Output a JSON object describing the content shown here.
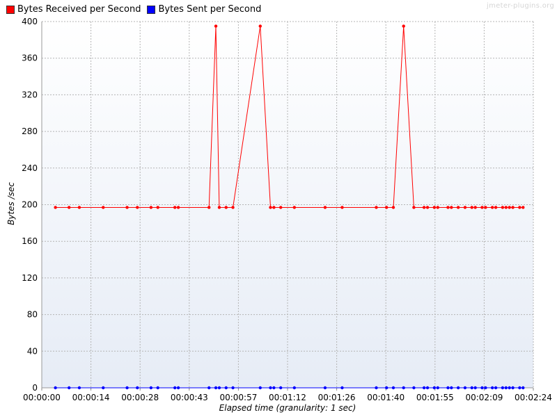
{
  "legend": {
    "received": {
      "label": "Bytes Received per Second",
      "color": "#ff0000"
    },
    "sent": {
      "label": "Bytes Sent per Second",
      "color": "#0000ff"
    }
  },
  "watermark": "jmeter-plugins.org",
  "chart_data": {
    "type": "line",
    "xlabel": "Elapsed time (granularity: 1 sec)",
    "ylabel": "Bytes /sec",
    "ylim": [
      0,
      400
    ],
    "y_ticks": [
      "0",
      "40",
      "80",
      "120",
      "160",
      "200",
      "240",
      "280",
      "320",
      "360",
      "400"
    ],
    "xlim": [
      0,
      144
    ],
    "x_ticks": [
      "00:00:00",
      "00:00:14",
      "00:00:28",
      "00:00:43",
      "00:00:57",
      "00:01:12",
      "00:01:26",
      "00:01:40",
      "00:01:55",
      "00:02:09",
      "00:02:24"
    ],
    "grid": true,
    "legend_position": "top-left",
    "series": [
      {
        "name": "Bytes Received per Second",
        "color": "#ff0000",
        "x": [
          4,
          8,
          11,
          18,
          25,
          28,
          32,
          34,
          39,
          40,
          49,
          51,
          52,
          54,
          56,
          64,
          67,
          68,
          70,
          74,
          83,
          88,
          98,
          101,
          103,
          106,
          109,
          112,
          113,
          115,
          116,
          119,
          120,
          122,
          124,
          126,
          127,
          129,
          130,
          132,
          133,
          135,
          136,
          137,
          138,
          140,
          141
        ],
        "y": [
          197,
          197,
          197,
          197,
          197,
          197,
          197,
          197,
          197,
          197,
          197,
          395,
          197,
          197,
          197,
          395,
          197,
          197,
          197,
          197,
          197,
          197,
          197,
          197,
          197,
          395,
          197,
          197,
          197,
          197,
          197,
          197,
          197,
          197,
          197,
          197,
          197,
          197,
          197,
          197,
          197,
          197,
          197,
          197,
          197,
          197,
          197
        ]
      },
      {
        "name": "Bytes Sent per Second",
        "color": "#0000ff",
        "x": [
          4,
          8,
          11,
          18,
          25,
          28,
          32,
          34,
          39,
          40,
          49,
          51,
          52,
          54,
          56,
          64,
          67,
          68,
          70,
          74,
          83,
          88,
          98,
          101,
          103,
          106,
          109,
          112,
          113,
          115,
          116,
          119,
          120,
          122,
          124,
          126,
          127,
          129,
          130,
          132,
          133,
          135,
          136,
          137,
          138,
          140,
          141
        ],
        "y": [
          0,
          0,
          0,
          0,
          0,
          0,
          0,
          0,
          0,
          0,
          0,
          0,
          0,
          0,
          0,
          0,
          0,
          0,
          0,
          0,
          0,
          0,
          0,
          0,
          0,
          0,
          0,
          0,
          0,
          0,
          0,
          0,
          0,
          0,
          0,
          0,
          0,
          0,
          0,
          0,
          0,
          0,
          0,
          0,
          0,
          0,
          0
        ]
      }
    ]
  }
}
